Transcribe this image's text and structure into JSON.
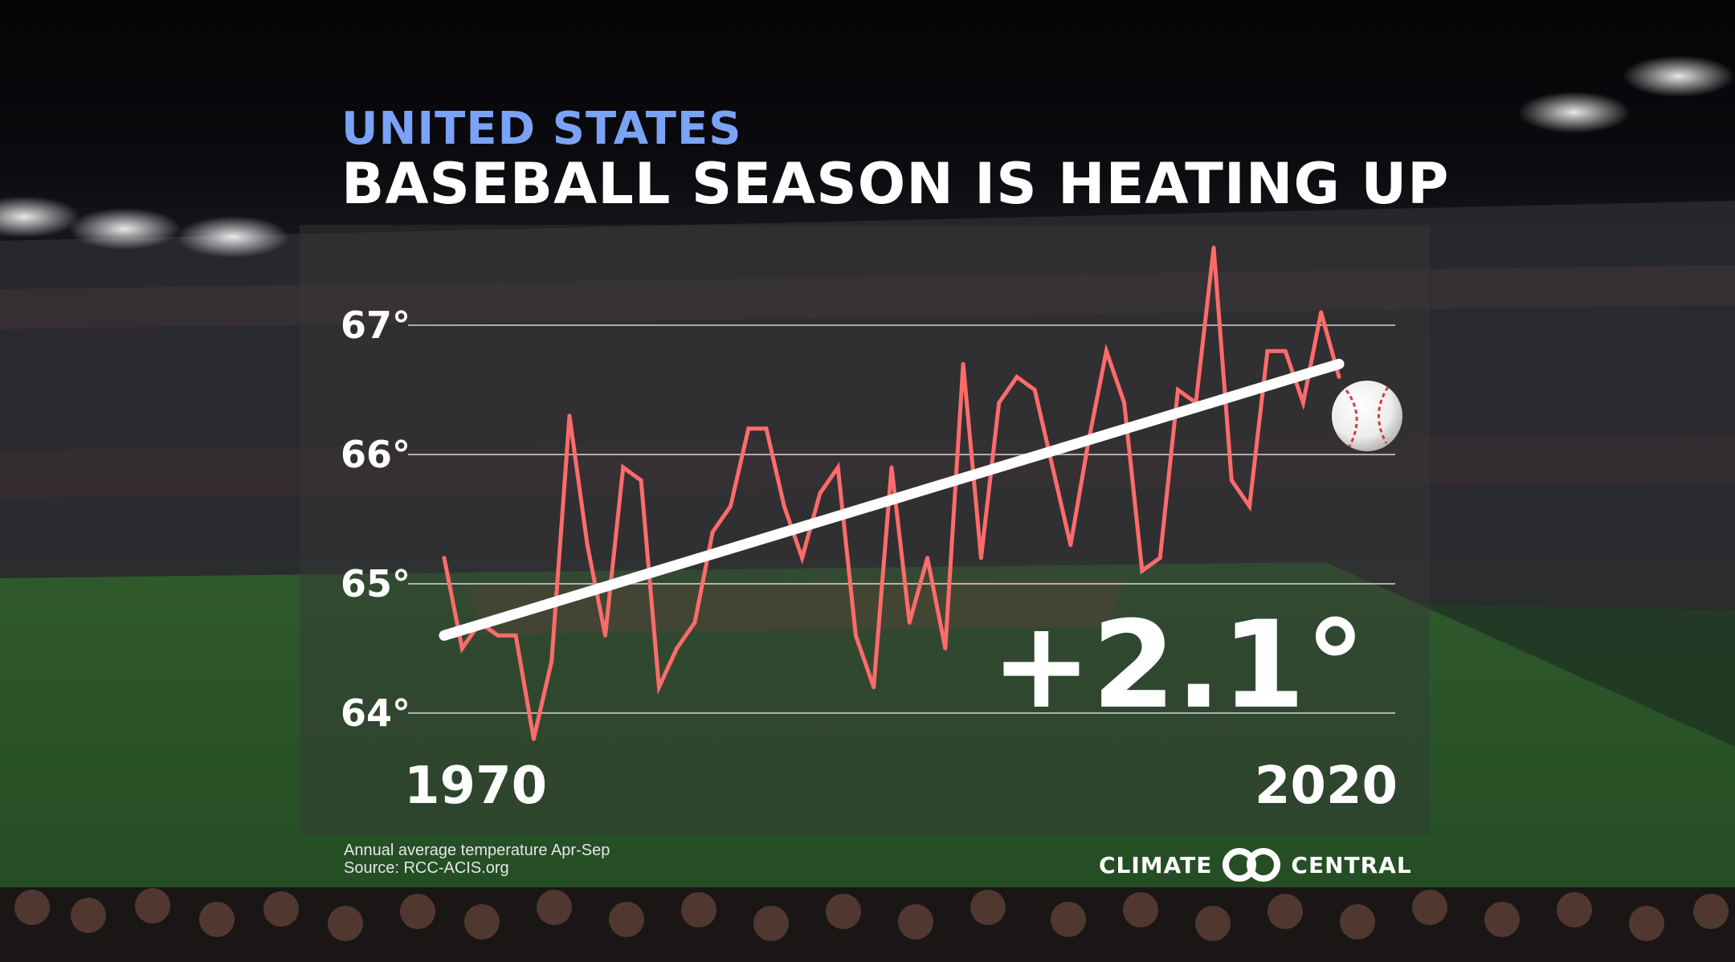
{
  "header": {
    "region": "UNITED STATES",
    "title": "BASEBALL SEASON IS HEATING UP"
  },
  "notes": {
    "line1": "Annual average temperature Apr-Sep",
    "line2": "Source: RCC-ACIS.org"
  },
  "brand": {
    "left": "CLIMATE",
    "right": "CENTRAL"
  },
  "callout": "+2.1°",
  "colors": {
    "series": "#ff6b6b",
    "trend": "#ffffff",
    "region_text": "#7aa2f7",
    "panel": "rgba(55,55,55,0.45)"
  },
  "chart_data": {
    "type": "line",
    "x_start_label": "1970",
    "x_end_label": "2020",
    "xlim": [
      1970,
      2020
    ],
    "ylim": [
      63.6,
      67.6
    ],
    "yticks": [
      64,
      65,
      66,
      67
    ],
    "ytick_labels": [
      "64°",
      "65°",
      "66°",
      "67°"
    ],
    "grid": true,
    "series": [
      {
        "x": [
          1970,
          1971,
          1972,
          1973,
          1974,
          1975,
          1976,
          1977,
          1978,
          1979,
          1980,
          1981,
          1982,
          1983,
          1984,
          1985,
          1986,
          1987,
          1988,
          1989,
          1990,
          1991,
          1992,
          1993,
          1994,
          1995,
          1996,
          1997,
          1998,
          1999,
          2000,
          2001,
          2002,
          2003,
          2004,
          2005,
          2006,
          2007,
          2008,
          2009,
          2010,
          2011,
          2012,
          2013,
          2014,
          2015,
          2016,
          2017,
          2018,
          2019,
          2020
        ],
        "values": [
          65.2,
          64.5,
          64.7,
          64.6,
          64.6,
          63.8,
          64.4,
          66.3,
          65.3,
          64.6,
          65.9,
          65.8,
          64.2,
          64.5,
          64.7,
          65.4,
          65.6,
          66.2,
          66.2,
          65.6,
          65.2,
          65.7,
          65.9,
          64.6,
          64.2,
          65.9,
          64.7,
          65.2,
          64.5,
          66.7,
          65.2,
          66.4,
          66.6,
          66.5,
          65.9,
          65.3,
          66.1,
          66.8,
          66.4,
          65.1,
          65.2,
          66.5,
          66.4,
          67.6,
          65.8,
          65.6,
          66.8,
          66.8,
          66.4,
          67.1,
          66.6
        ]
      },
      {
        "name": "trend",
        "x": [
          1970,
          2020
        ],
        "values": [
          64.6,
          66.7
        ]
      }
    ]
  }
}
